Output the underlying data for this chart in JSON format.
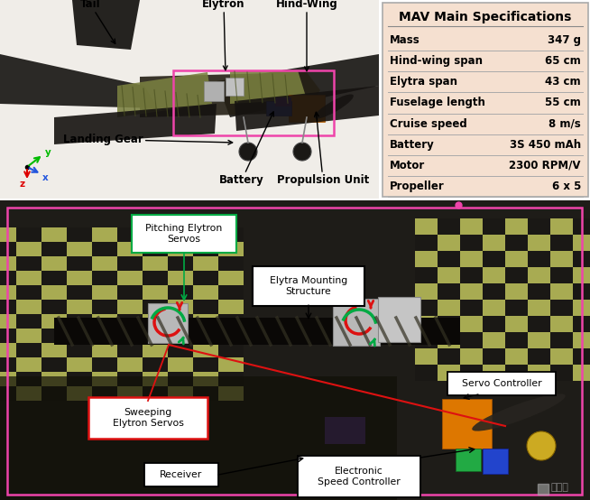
{
  "title": "MAV Main Specifications",
  "specs_labels": [
    "Mass",
    "Hind-wing span",
    "Elytra span",
    "Fuselage length",
    "Cruise speed",
    "Battery",
    "Motor",
    "Propeller"
  ],
  "specs_values": [
    "347 g",
    "65 cm",
    "43 cm",
    "55 cm",
    "8 m/s",
    "3S 450 mAh",
    "2300 RPM/V",
    "6 x 5"
  ],
  "table_bg": "#f5e0d0",
  "bg_color": "#ffffff",
  "top_photo_bg": "#c8c0b0",
  "top_photo_fg": "#686050",
  "bottom_photo_bg": "#2a2520",
  "bottom_photo_mid": "#8a8060",
  "pink_color": "#ee44aa",
  "red_color": "#dd1111",
  "green_color": "#00aa44",
  "black_color": "#000000",
  "wing_color_dark": "#1a1510",
  "wing_color_olive": "#7a8040",
  "axis_y_color": "#00bb00",
  "axis_z_color": "#dd0000",
  "axis_x_color": "#2255dd",
  "watermark_color": "#888888"
}
